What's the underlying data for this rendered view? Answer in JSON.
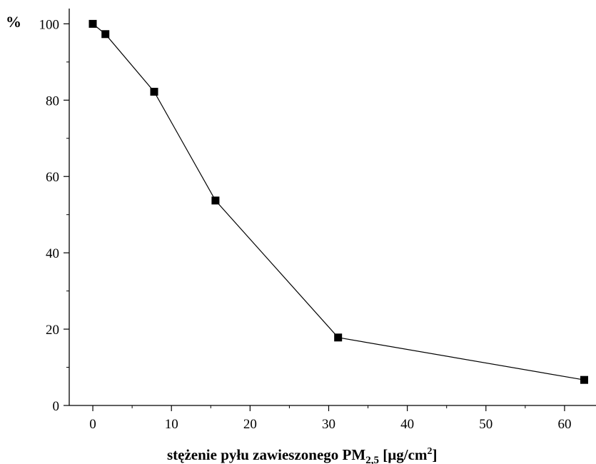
{
  "chart_data": {
    "type": "line",
    "ylabel": "%",
    "xlabel": {
      "main": "stężenie pyłu zawieszonego PM",
      "subscript": "2,5",
      "unit_open": " [µg/cm",
      "superscript": "2",
      "unit_close": "]"
    },
    "xlim": [
      -3,
      64
    ],
    "ylim": [
      0,
      104
    ],
    "x_ticks": [
      0,
      10,
      20,
      30,
      40,
      50,
      60
    ],
    "y_ticks": [
      0,
      20,
      40,
      60,
      80,
      100
    ],
    "x_tick_labels": [
      "0",
      "10",
      "20",
      "30",
      "40",
      "50",
      "60"
    ],
    "y_tick_labels": [
      "0",
      "20",
      "40",
      "60",
      "80",
      "100"
    ],
    "grid": false,
    "marker": "square",
    "line_color": "#000000",
    "marker_color": "#000000",
    "series": [
      {
        "x": [
          0,
          1.6,
          7.8,
          15.6,
          31.2,
          62.5
        ],
        "y": [
          100,
          97.3,
          82.2,
          53.7,
          17.8,
          6.7
        ]
      }
    ]
  }
}
